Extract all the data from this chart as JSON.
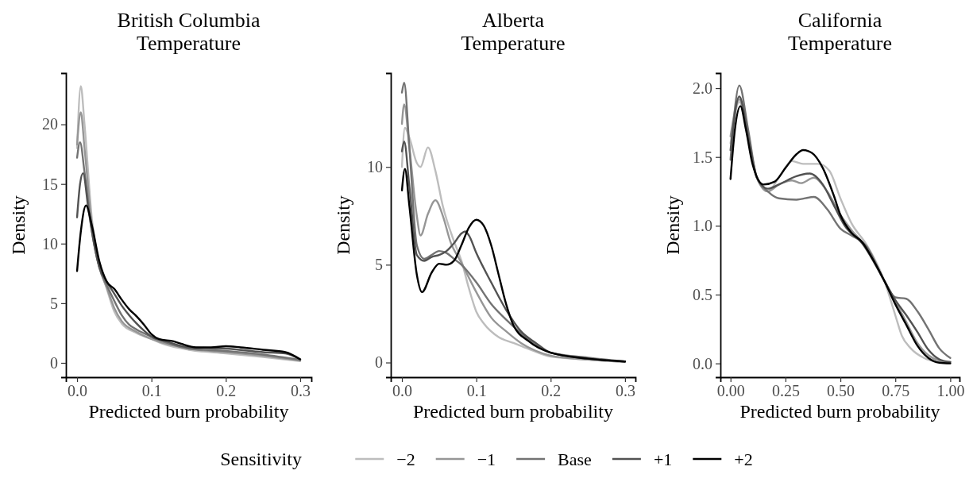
{
  "chart_data": [
    {
      "type": "line",
      "title": "British Columbia\nTemperature",
      "xlabel": "Predicted burn probability",
      "ylabel": "Density",
      "legend": "bottom",
      "legend_title": "Sensitivity",
      "grid": false,
      "line_style": "solid",
      "marker": "none",
      "xlim": [
        -0.015,
        0.315
      ],
      "ylim": [
        -1.2,
        24.3
      ],
      "xticks": [
        {
          "value": 0,
          "label": "0.0"
        },
        0.1,
        0.2,
        0.3
      ],
      "yticks": [
        0,
        5,
        10,
        15,
        20
      ],
      "series": [
        {
          "name": "−2",
          "color": "#bdbdbd",
          "x": [
            0,
            0.005,
            0.01,
            0.02,
            0.03,
            0.04,
            0.05,
            0.06,
            0.08,
            0.1,
            0.12,
            0.15,
            0.2,
            0.25,
            0.3
          ],
          "values": [
            18,
            23.2,
            20,
            12,
            8.2,
            6.2,
            4.3,
            3.3,
            2.5,
            2.0,
            1.5,
            1.1,
            0.8,
            0.5,
            0.15
          ]
        },
        {
          "name": "−1",
          "color": "#969696",
          "x": [
            0,
            0.005,
            0.01,
            0.02,
            0.03,
            0.04,
            0.05,
            0.06,
            0.08,
            0.1,
            0.12,
            0.15,
            0.2,
            0.25,
            0.3
          ],
          "values": [
            18.3,
            21,
            18,
            11.5,
            8,
            6.3,
            4.6,
            3.5,
            2.6,
            2.0,
            1.6,
            1.2,
            0.9,
            0.6,
            0.2
          ]
        },
        {
          "name": "Base",
          "color": "#737373",
          "x": [
            0,
            0.004,
            0.01,
            0.02,
            0.03,
            0.04,
            0.05,
            0.06,
            0.07,
            0.08,
            0.1,
            0.12,
            0.15,
            0.2,
            0.25,
            0.3
          ],
          "values": [
            17.2,
            18.5,
            16,
            11,
            8,
            6.5,
            5.2,
            4.0,
            3.2,
            2.8,
            2.2,
            1.7,
            1.2,
            1.0,
            0.7,
            0.25
          ]
        },
        {
          "name": "+1",
          "color": "#525252",
          "x": [
            0,
            0.004,
            0.008,
            0.015,
            0.02,
            0.03,
            0.04,
            0.05,
            0.06,
            0.07,
            0.08,
            0.09,
            0.1,
            0.12,
            0.15,
            0.2,
            0.25,
            0.28,
            0.3
          ],
          "values": [
            12.2,
            15,
            15.9,
            13,
            11,
            8,
            6.8,
            5.8,
            4.8,
            4.0,
            3.3,
            2.7,
            2.2,
            1.8,
            1.3,
            1.2,
            0.9,
            0.8,
            0.3
          ]
        },
        {
          "name": "+2",
          "color": "#000000",
          "x": [
            0,
            0.005,
            0.012,
            0.02,
            0.03,
            0.04,
            0.05,
            0.06,
            0.07,
            0.08,
            0.09,
            0.1,
            0.11,
            0.13,
            0.14,
            0.16,
            0.18,
            0.2,
            0.22,
            0.25,
            0.28,
            0.3
          ],
          "values": [
            7.7,
            11,
            13.2,
            11.5,
            8.5,
            6.8,
            6.2,
            5.3,
            4.5,
            3.9,
            3.2,
            2.4,
            2.0,
            1.8,
            1.6,
            1.3,
            1.3,
            1.4,
            1.3,
            1.1,
            0.9,
            0.3
          ]
        }
      ]
    },
    {
      "type": "line",
      "title": "Alberta\nTemperature",
      "xlabel": "Predicted burn probability",
      "ylabel": "Density",
      "grid": false,
      "line_style": "solid",
      "marker": "none",
      "xlim": [
        -0.015,
        0.314
      ],
      "ylim": [
        -0.75,
        14.8
      ],
      "xticks": [
        {
          "value": 0,
          "label": "0.0"
        },
        0.1,
        0.2,
        0.3
      ],
      "yticks": [
        0,
        5,
        10
      ],
      "series": [
        {
          "color": "#bdbdbd",
          "x": [
            0,
            0.004,
            0.01,
            0.02,
            0.025,
            0.035,
            0.045,
            0.055,
            0.07,
            0.08,
            0.09,
            0.1,
            0.11,
            0.13,
            0.15,
            0.17,
            0.2,
            0.25,
            0.3
          ],
          "values": [
            10,
            12,
            11.5,
            10.2,
            10,
            11,
            9.8,
            8,
            6.2,
            5.2,
            3.8,
            2.6,
            2.0,
            1.3,
            1.0,
            0.7,
            0.3,
            0.15,
            0.03
          ]
        },
        {
          "color": "#969696",
          "x": [
            0,
            0.003,
            0.01,
            0.02,
            0.025,
            0.035,
            0.045,
            0.055,
            0.065,
            0.08,
            0.1,
            0.12,
            0.14,
            0.16,
            0.18,
            0.2,
            0.25,
            0.3
          ],
          "values": [
            12.2,
            13.2,
            11,
            7.5,
            6.5,
            7.6,
            8.3,
            7.5,
            6.2,
            5.1,
            3.6,
            2.3,
            1.6,
            1.0,
            0.6,
            0.35,
            0.15,
            0.03
          ]
        },
        {
          "color": "#737373",
          "x": [
            0,
            0.003,
            0.01,
            0.02,
            0.03,
            0.04,
            0.05,
            0.06,
            0.07,
            0.08,
            0.1,
            0.12,
            0.14,
            0.16,
            0.18,
            0.2,
            0.25,
            0.3
          ],
          "values": [
            13.8,
            14.3,
            11,
            6,
            5.3,
            5.5,
            5.7,
            5.6,
            5.3,
            5.0,
            4.1,
            3.0,
            2.2,
            1.5,
            0.9,
            0.5,
            0.25,
            0.05
          ]
        },
        {
          "color": "#525252",
          "x": [
            0,
            0.003,
            0.01,
            0.02,
            0.03,
            0.04,
            0.05,
            0.06,
            0.07,
            0.08,
            0.085,
            0.09,
            0.1,
            0.12,
            0.14,
            0.16,
            0.18,
            0.2,
            0.25,
            0.3
          ],
          "values": [
            10.8,
            11.3,
            9,
            5.5,
            5.2,
            5.4,
            5.5,
            5.7,
            6.1,
            6.6,
            6.7,
            6.5,
            5.6,
            4.1,
            2.7,
            1.6,
            1.0,
            0.5,
            0.2,
            0.05
          ]
        },
        {
          "color": "#000000",
          "x": [
            0,
            0.004,
            0.01,
            0.02,
            0.027,
            0.04,
            0.05,
            0.06,
            0.07,
            0.08,
            0.09,
            0.1,
            0.11,
            0.12,
            0.13,
            0.14,
            0.15,
            0.17,
            0.2,
            0.25,
            0.3
          ],
          "values": [
            8.8,
            9.9,
            8,
            4.5,
            3.6,
            4.6,
            5.05,
            5.0,
            5.2,
            6.0,
            6.9,
            7.3,
            7.0,
            6.0,
            4.5,
            3.0,
            1.9,
            1.1,
            0.5,
            0.2,
            0.05
          ]
        }
      ]
    },
    {
      "type": "line",
      "title": "California\nTemperature",
      "xlabel": "Predicted burn probability",
      "ylabel": "Density",
      "grid": false,
      "line_style": "solid",
      "marker": "none",
      "xlim": [
        -0.046,
        1.042
      ],
      "ylim": [
        -0.1,
        2.11
      ],
      "xticks": [
        {
          "value": 0,
          "label": "0.00"
        },
        0.25,
        {
          "value": 0.5,
          "label": "0.50"
        },
        0.75,
        {
          "value": 1,
          "label": "1.00"
        }
      ],
      "yticks": [
        {
          "value": 0,
          "label": "0.0"
        },
        0.5,
        {
          "value": 1,
          "label": "1.0"
        },
        1.5,
        {
          "value": 2,
          "label": "2.0"
        }
      ],
      "series": [
        {
          "color": "#bdbdbd",
          "x": [
            0,
            0.04,
            0.08,
            0.12,
            0.17,
            0.22,
            0.28,
            0.33,
            0.4,
            0.45,
            0.5,
            0.55,
            0.62,
            0.7,
            0.75,
            0.78,
            0.82,
            0.88,
            0.95,
            1.0
          ],
          "values": [
            1.6,
            1.9,
            1.65,
            1.35,
            1.25,
            1.35,
            1.47,
            1.45,
            1.45,
            1.4,
            1.2,
            1.02,
            0.86,
            0.6,
            0.35,
            0.2,
            0.11,
            0.04,
            0.01,
            0.0
          ]
        },
        {
          "color": "#969696",
          "x": [
            0,
            0.04,
            0.08,
            0.12,
            0.17,
            0.22,
            0.28,
            0.32,
            0.38,
            0.44,
            0.5,
            0.55,
            0.62,
            0.7,
            0.75,
            0.8,
            0.85,
            0.9,
            0.95,
            1.0
          ],
          "values": [
            1.65,
            1.92,
            1.65,
            1.35,
            1.25,
            1.3,
            1.33,
            1.31,
            1.35,
            1.25,
            1.08,
            0.97,
            0.84,
            0.6,
            0.45,
            0.3,
            0.15,
            0.06,
            0.02,
            0.01
          ]
        },
        {
          "color": "#737373",
          "x": [
            0,
            0.04,
            0.08,
            0.12,
            0.17,
            0.22,
            0.3,
            0.38,
            0.44,
            0.5,
            0.55,
            0.62,
            0.7,
            0.75,
            0.8,
            0.85,
            0.9,
            0.95,
            1.0
          ],
          "values": [
            1.48,
            2.02,
            1.7,
            1.35,
            1.25,
            1.2,
            1.19,
            1.21,
            1.12,
            0.98,
            0.93,
            0.85,
            0.6,
            0.48,
            0.47,
            0.38,
            0.25,
            0.11,
            0.04
          ]
        },
        {
          "color": "#525252",
          "x": [
            0,
            0.04,
            0.08,
            0.12,
            0.17,
            0.22,
            0.3,
            0.36,
            0.42,
            0.47,
            0.52,
            0.6,
            0.7,
            0.75,
            0.8,
            0.85,
            0.9,
            0.95,
            1.0
          ],
          "values": [
            1.55,
            1.94,
            1.65,
            1.35,
            1.27,
            1.3,
            1.36,
            1.38,
            1.3,
            1.15,
            1.0,
            0.87,
            0.6,
            0.46,
            0.35,
            0.23,
            0.1,
            0.03,
            0.01
          ]
        },
        {
          "color": "#000000",
          "x": [
            0,
            0.02,
            0.045,
            0.07,
            0.1,
            0.15,
            0.2,
            0.25,
            0.3,
            0.33,
            0.37,
            0.42,
            0.47,
            0.5,
            0.55,
            0.6,
            0.65,
            0.7,
            0.75,
            0.8,
            0.85,
            0.9,
            0.95,
            1.0
          ],
          "values": [
            1.34,
            1.7,
            1.87,
            1.7,
            1.45,
            1.3,
            1.32,
            1.42,
            1.52,
            1.55,
            1.53,
            1.42,
            1.22,
            1.08,
            0.95,
            0.88,
            0.75,
            0.6,
            0.43,
            0.28,
            0.13,
            0.04,
            0.005,
            0.0
          ]
        }
      ]
    }
  ]
}
